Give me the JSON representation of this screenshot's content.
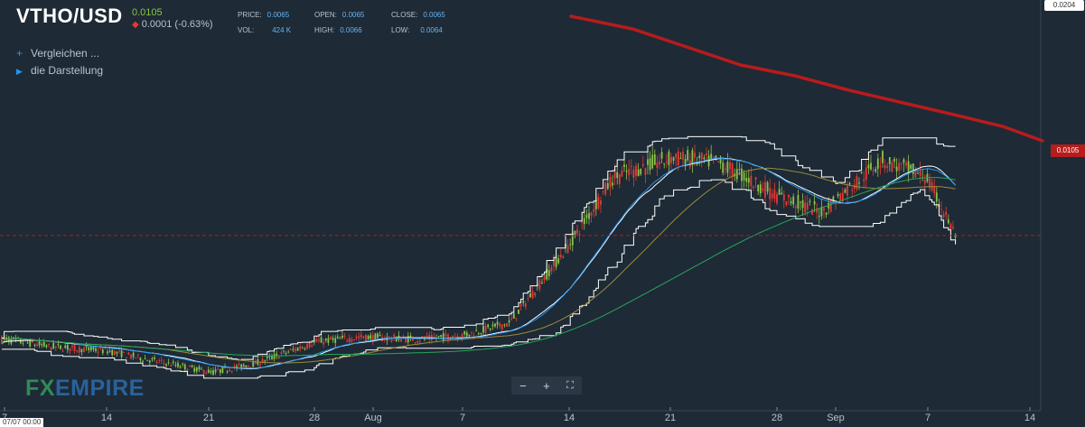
{
  "header": {
    "ticker": "VTHO/USD",
    "price": "0.0105",
    "change": "0.0001 (-0.63%)",
    "stats": [
      {
        "label": "PRICE:",
        "value": "0.0065"
      },
      {
        "label": "OPEN:",
        "value": "0.0065"
      },
      {
        "label": "CLOSE:",
        "value": "0.0065"
      },
      {
        "label": "VOL:",
        "value": "424 K"
      },
      {
        "label": "HIGH:",
        "value": "0.0066"
      },
      {
        "label": "LOW:",
        "value": "0.0064"
      }
    ]
  },
  "menu": {
    "compare": "Vergleichen ...",
    "display": "die Darstellung"
  },
  "controls": {
    "minus": "−",
    "plus": "+",
    "fullscreen": "⛶"
  },
  "logo": {
    "fx": "FX",
    "empire": "EMPIRE"
  },
  "axis": {
    "y_top_label": "0.0204",
    "current_price_label": "0.0105",
    "crosshair_date": "07/07 00:00",
    "x_ticks": [
      "7",
      "14",
      "21",
      "28",
      "Aug",
      "7",
      "14",
      "21",
      "28",
      "Sep",
      "7",
      "14"
    ]
  },
  "colors": {
    "background": "#1e2a35",
    "bull": "#8bc34a",
    "bear": "#e53935",
    "ma_fast": "#2196f3",
    "ma_mid": "#9e8a3c",
    "ma_slow": "#26a65b",
    "envelope": "#ffffff",
    "trendline": "#b71c1c"
  },
  "chart_data": {
    "type": "line",
    "series": [
      {
        "name": "VTHO/USD",
        "x": [
          "Jul 7",
          "Jul 10",
          "Jul 14",
          "Jul 17",
          "Jul 21",
          "Jul 24",
          "Jul 28",
          "Jul 31",
          "Aug 4",
          "Aug 7",
          "Aug 10",
          "Aug 14",
          "Aug 17",
          "Aug 21",
          "Aug 24",
          "Aug 28",
          "Aug 31",
          "Sep 4",
          "Sep 7",
          "Sep 9"
        ],
        "values": [
          0.0061,
          0.0058,
          0.0056,
          0.0052,
          0.0047,
          0.0051,
          0.006,
          0.0062,
          0.0061,
          0.0063,
          0.0068,
          0.0101,
          0.013,
          0.0138,
          0.0136,
          0.0122,
          0.0115,
          0.0137,
          0.013,
          0.0105
        ]
      }
    ],
    "ylim": [
      0.003,
      0.0204
    ],
    "grid": true,
    "legend": "none"
  }
}
